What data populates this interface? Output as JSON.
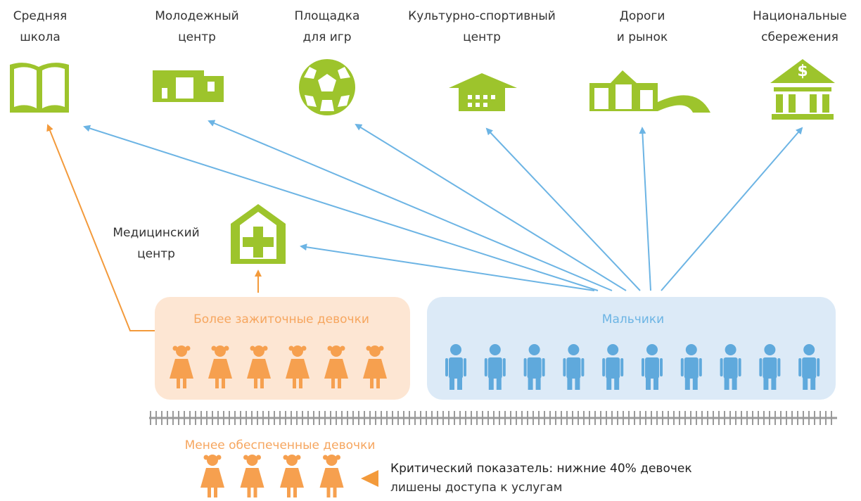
{
  "services": [
    {
      "label": [
        "Средняя",
        "школа"
      ]
    },
    {
      "label": [
        "Молодежный",
        "центр"
      ]
    },
    {
      "label": [
        "Площадка",
        "для игр"
      ]
    },
    {
      "label": [
        "Культурно-спортивный",
        "центр"
      ]
    },
    {
      "label": [
        "Дороги",
        "и рынок"
      ]
    },
    {
      "label": [
        "Национальные",
        "сбережения"
      ]
    }
  ],
  "medical": {
    "label": [
      "Медицинский",
      "центр"
    ]
  },
  "groups": {
    "rich_girls": "Более зажиточные девочки",
    "boys": "Мальчики",
    "poor_girls": "Менее обеспеченные девочки"
  },
  "note": {
    "title": "Критический показатель: нижние 40% девочек",
    "text": "лишены доступа к услугам"
  }
}
